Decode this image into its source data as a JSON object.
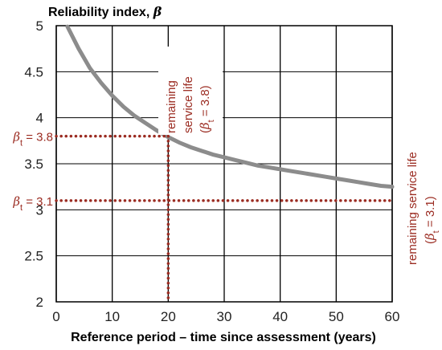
{
  "chart_data": {
    "type": "line",
    "ylabel": "Reliability index, ",
    "ylabel_symbol": "β",
    "xlabel": "Reference period – time since assessment (years)",
    "xlim": [
      0,
      60
    ],
    "ylim": [
      2,
      5
    ],
    "x_ticks": [
      "0",
      "10",
      "20",
      "30",
      "40",
      "50",
      "60"
    ],
    "y_ticks": [
      "2",
      "2.5",
      "3",
      "3.5",
      "4",
      "4.5",
      "5"
    ],
    "grid": true,
    "series": [
      {
        "color": "#8c8c8c",
        "x": [
          2,
          4,
          6,
          8,
          10,
          12,
          14,
          16,
          18,
          20,
          22,
          24,
          26,
          28,
          30,
          32,
          34,
          36,
          38,
          40,
          42,
          44,
          46,
          48,
          50,
          52,
          54,
          56,
          58,
          60
        ],
        "y": [
          4.99,
          4.75,
          4.54,
          4.38,
          4.24,
          4.12,
          4.02,
          3.94,
          3.86,
          3.79,
          3.73,
          3.68,
          3.64,
          3.6,
          3.57,
          3.54,
          3.51,
          3.48,
          3.46,
          3.44,
          3.42,
          3.4,
          3.38,
          3.36,
          3.34,
          3.32,
          3.3,
          3.28,
          3.26,
          3.25
        ]
      }
    ],
    "reference_lines": [
      {
        "beta_sym": "β",
        "sub": "t",
        "eq": " = 3.8",
        "value": 3.8,
        "x_intersect": 20,
        "color": "#9b2c22"
      },
      {
        "beta_sym": "β",
        "sub": "t",
        "eq": " = 3.1",
        "value": 3.1,
        "x_intersect": 60,
        "color": "#9b2c22"
      }
    ],
    "annotations": {
      "rsl1_line1": "remaining",
      "rsl1_line2": "service life",
      "rsl1_open": "(",
      "rsl1_beta": "β",
      "rsl1_sub": "t",
      "rsl1_rest": " = 3.8)",
      "rsl2_line1": "remaining service life",
      "rsl2_open": "(",
      "rsl2_beta": "β",
      "rsl2_sub": "t",
      "rsl2_rest": " = 3.1)"
    }
  }
}
